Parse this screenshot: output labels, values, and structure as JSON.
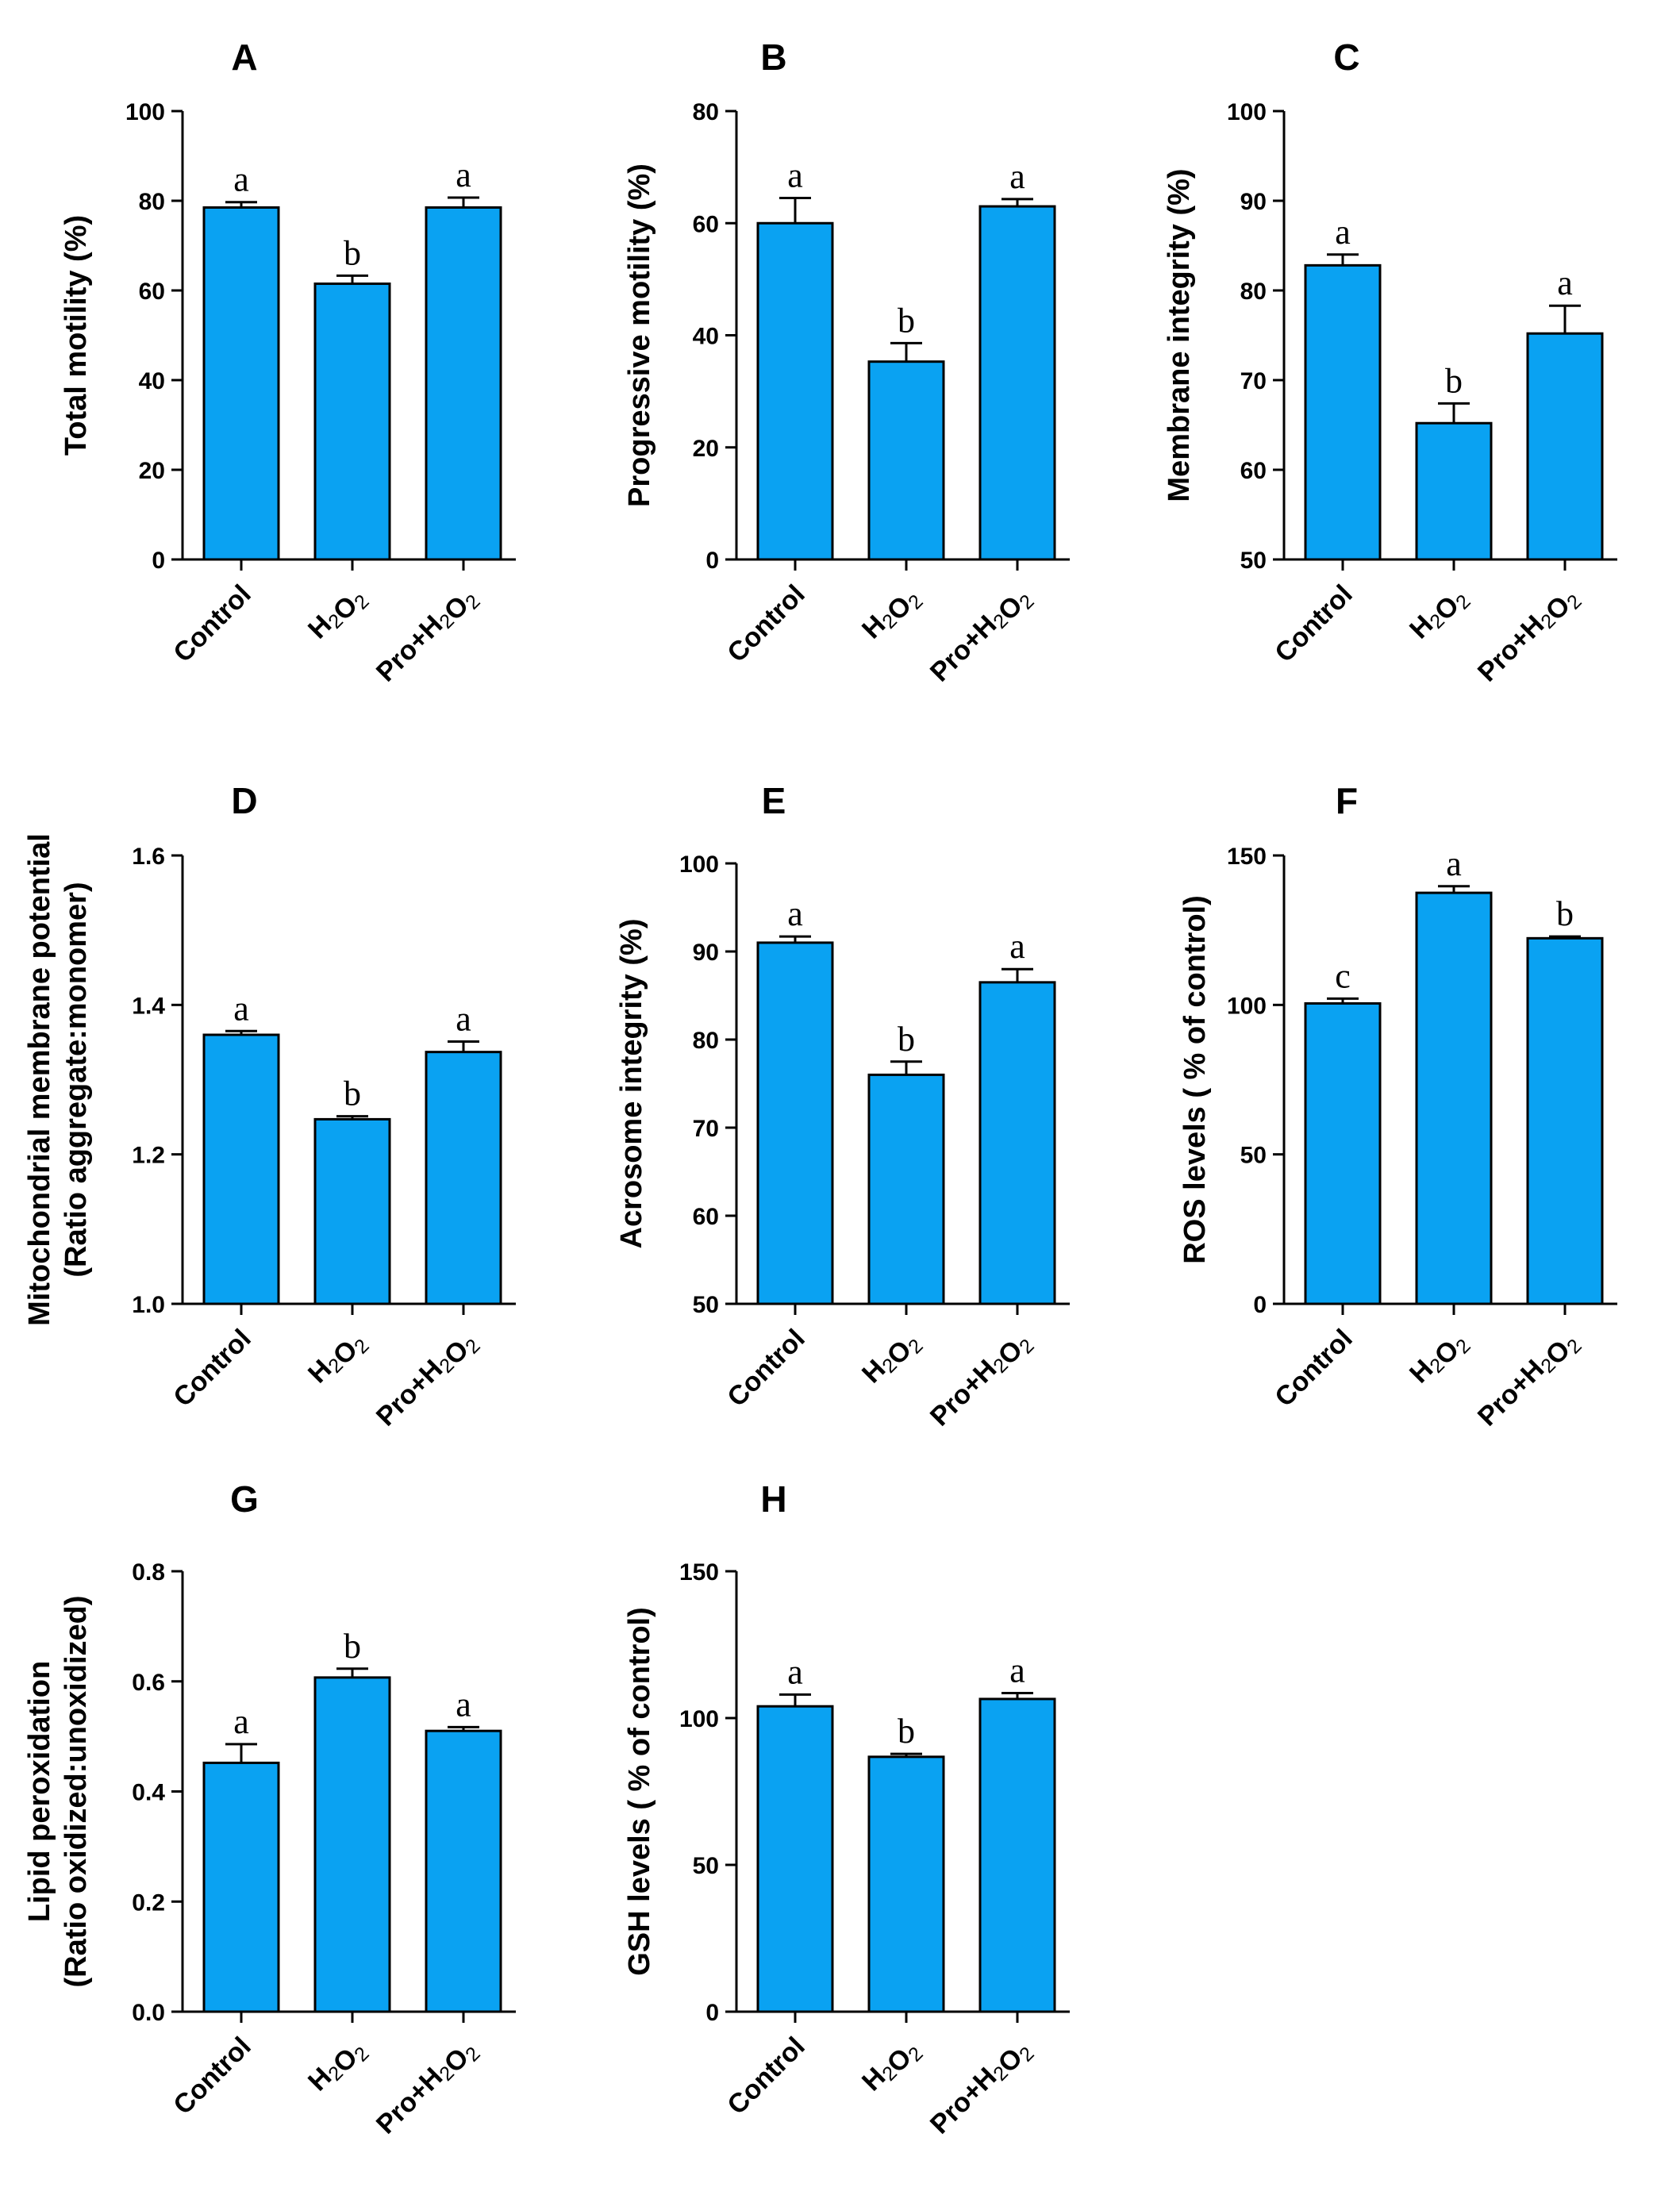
{
  "figure": {
    "bar_color": "#0aa2f2",
    "stroke_color": "#000000"
  },
  "chart_data": [
    {
      "panel": "A",
      "type": "bar",
      "categories": [
        "Control",
        "H2O2",
        "Pro+H2O2"
      ],
      "values": [
        78.5,
        61.5,
        78.5
      ],
      "errors": [
        1.2,
        1.8,
        2.2
      ],
      "letters": [
        "a",
        "b",
        "a"
      ],
      "ylabel_lines": [
        "Total motility (%)"
      ],
      "ylim": [
        0,
        100
      ],
      "yticks": [
        0,
        20,
        40,
        60,
        80,
        100
      ],
      "ytick_labels": [
        "0",
        "20",
        "40",
        "60",
        "80",
        "100"
      ]
    },
    {
      "panel": "B",
      "type": "bar",
      "categories": [
        "Control",
        "H2O2",
        "Pro+H2O2"
      ],
      "values": [
        60,
        35.3,
        63
      ],
      "errors": [
        4.5,
        3.3,
        1.3
      ],
      "letters": [
        "a",
        "b",
        "a"
      ],
      "ylabel_lines": [
        "Progressive motility (%)"
      ],
      "ylim": [
        0,
        80
      ],
      "yticks": [
        0,
        20,
        40,
        60,
        80
      ],
      "ytick_labels": [
        "0",
        "20",
        "40",
        "60",
        "80"
      ]
    },
    {
      "panel": "C",
      "type": "bar",
      "categories": [
        "Control",
        "H2O2",
        "Pro+H2O2"
      ],
      "values": [
        82.8,
        65.2,
        75.2
      ],
      "errors": [
        1.2,
        2.2,
        3.1
      ],
      "letters": [
        "a",
        "b",
        "a"
      ],
      "ylabel_lines": [
        "Membrane integrity (%)"
      ],
      "ylim": [
        50,
        100
      ],
      "yticks": [
        50,
        60,
        70,
        80,
        90,
        100
      ],
      "ytick_labels": [
        "50",
        "60",
        "70",
        "80",
        "90",
        "100"
      ]
    },
    {
      "panel": "D",
      "type": "bar",
      "categories": [
        "Control",
        "H2O2",
        "Pro+H2O2"
      ],
      "values": [
        1.36,
        1.247,
        1.337
      ],
      "errors": [
        0.005,
        0.004,
        0.014
      ],
      "letters": [
        "a",
        "b",
        "a"
      ],
      "ylabel_lines": [
        "Mitochondrial membrane potential",
        "(Ratio aggregate:monomer)"
      ],
      "ylim": [
        1.0,
        1.6
      ],
      "yticks": [
        1.0,
        1.2,
        1.4,
        1.6
      ],
      "ytick_labels": [
        "1.0",
        "1.2",
        "1.4",
        "1.6"
      ]
    },
    {
      "panel": "E",
      "type": "bar",
      "categories": [
        "Control",
        "H2O2",
        "Pro+H2O2"
      ],
      "values": [
        91,
        76,
        86.5
      ],
      "errors": [
        0.7,
        1.5,
        1.5
      ],
      "letters": [
        "a",
        "b",
        "a"
      ],
      "ylabel_lines": [
        "Acrosome integrity (%)"
      ],
      "ylim": [
        50,
        100
      ],
      "yticks": [
        50,
        60,
        70,
        80,
        90,
        100
      ],
      "ytick_labels": [
        "50",
        "60",
        "70",
        "80",
        "90",
        "100"
      ]
    },
    {
      "panel": "F",
      "type": "bar",
      "categories": [
        "Control",
        "H2O2",
        "Pro+H2O2"
      ],
      "values": [
        100.5,
        137.5,
        122.3
      ],
      "errors": [
        1.6,
        2.2,
        0.6
      ],
      "letters": [
        "c",
        "a",
        "b"
      ],
      "ylabel_lines": [
        "ROS levels ( % of control)"
      ],
      "ylim": [
        0,
        150
      ],
      "yticks": [
        0,
        50,
        100,
        150
      ],
      "ytick_labels": [
        "0",
        "50",
        "100",
        "150"
      ]
    },
    {
      "panel": "G",
      "type": "bar",
      "categories": [
        "Control",
        "H2O2",
        "Pro+H2O2"
      ],
      "values": [
        0.452,
        0.607,
        0.51
      ],
      "errors": [
        0.034,
        0.016,
        0.007
      ],
      "letters": [
        "a",
        "b",
        "a"
      ],
      "ylabel_lines": [
        "Lipid peroxidation",
        "(Ratio oxidized:unoxidized)"
      ],
      "ylim": [
        0.0,
        0.8
      ],
      "yticks": [
        0.0,
        0.2,
        0.4,
        0.6,
        0.8
      ],
      "ytick_labels": [
        "0.0",
        "0.2",
        "0.4",
        "0.6",
        "0.8"
      ]
    },
    {
      "panel": "H",
      "type": "bar",
      "categories": [
        "Control",
        "H2O2",
        "Pro+H2O2"
      ],
      "values": [
        104,
        86.8,
        106.5
      ],
      "errors": [
        4,
        1.0,
        2.0
      ],
      "letters": [
        "a",
        "b",
        "a"
      ],
      "ylabel_lines": [
        "GSH levels ( % of control)"
      ],
      "ylim": [
        0,
        150
      ],
      "yticks": [
        0,
        50,
        100,
        150
      ],
      "ytick_labels": [
        "0",
        "50",
        "100",
        "150"
      ]
    }
  ]
}
